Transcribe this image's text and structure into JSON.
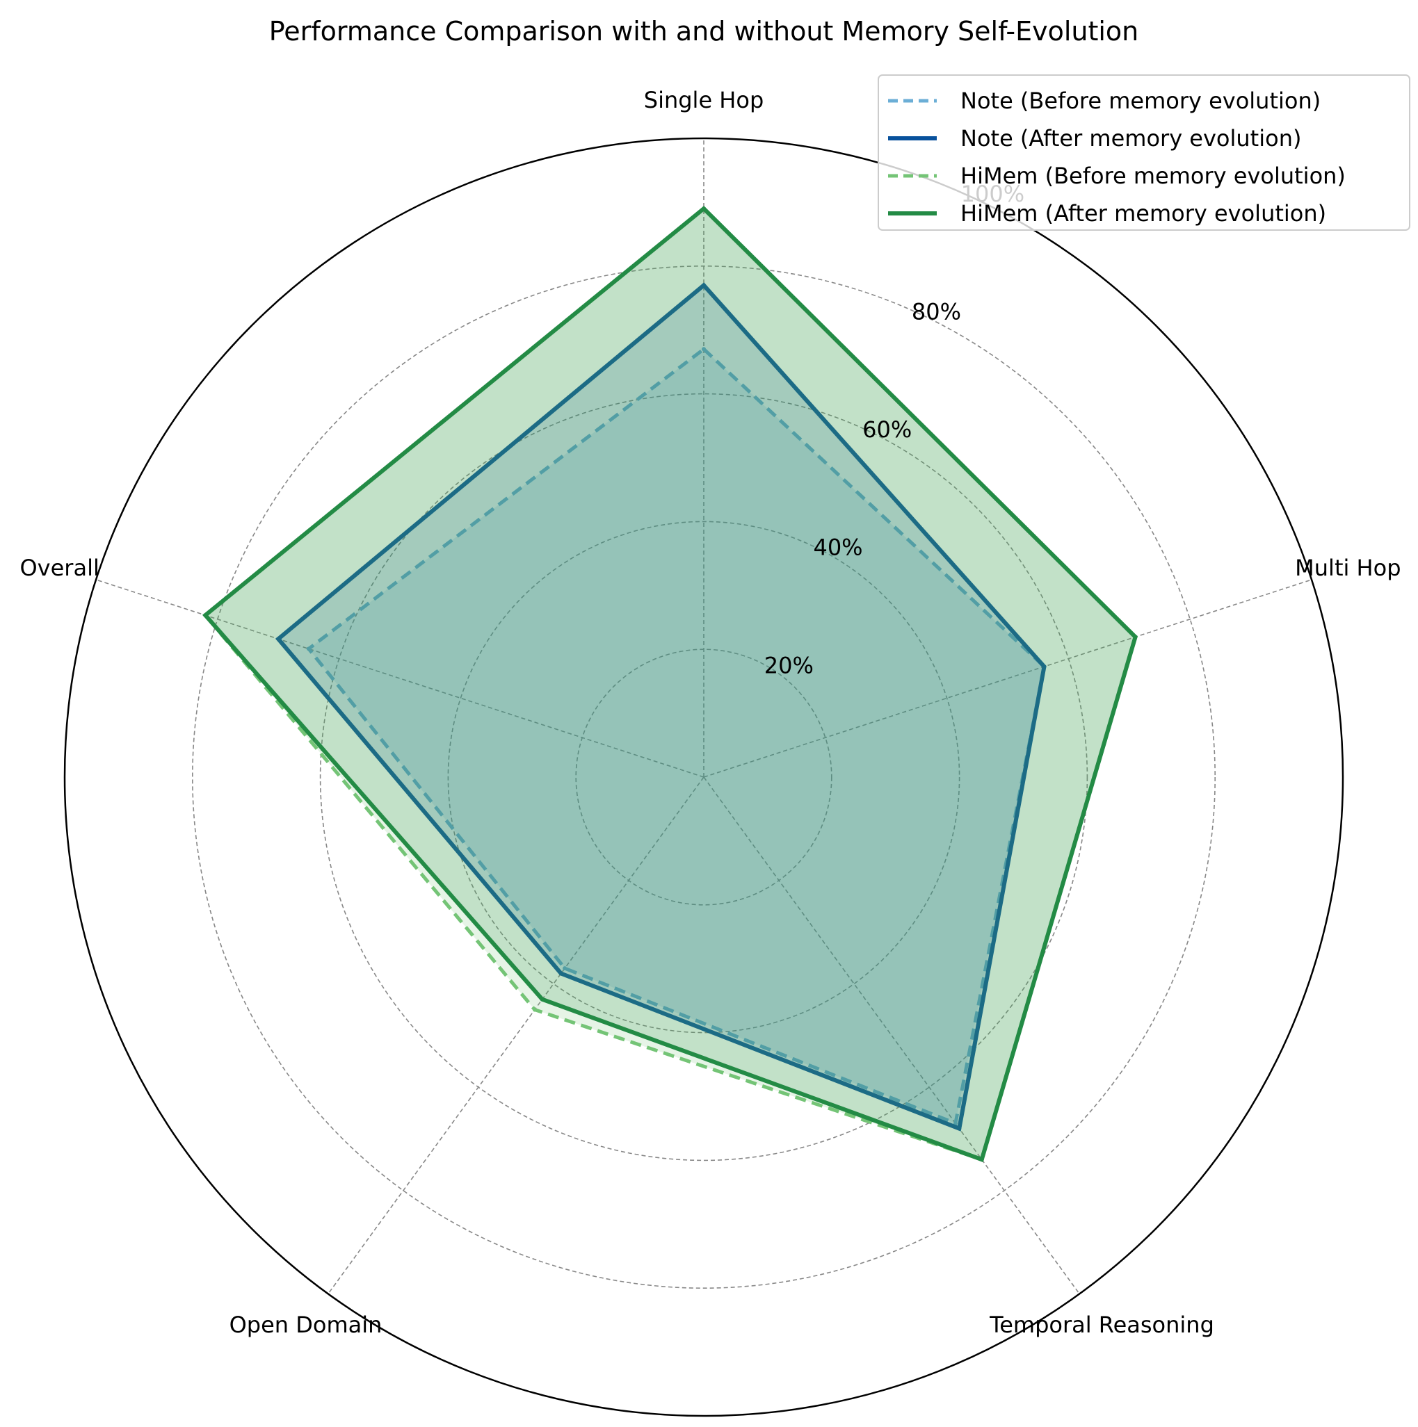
{
  "chart_data": {
    "type": "radar",
    "title": "Performance Comparison with and without Memory Self-Evolution",
    "categories": [
      "Single Hop",
      "Multi Hop",
      "Temporal Reasoning",
      "Open Domain",
      "Overall"
    ],
    "rlim": [
      0,
      100
    ],
    "r_ticks": [
      20,
      40,
      60,
      80,
      100
    ],
    "r_tick_labels": [
      "20%",
      "40%",
      "60%",
      "80%",
      "100%"
    ],
    "grid": true,
    "legend_position": "top-right",
    "series": [
      {
        "name": "Note (Before memory evolution)",
        "values": [
          67,
          56,
          67,
          37,
          65
        ],
        "color": "#6baed6",
        "style": "dashed",
        "fill": true
      },
      {
        "name": "Note (After memory evolution)",
        "values": [
          77,
          56,
          68,
          38,
          70
        ],
        "color": "#08519c",
        "style": "solid",
        "fill": true
      },
      {
        "name": "HiMem (Before memory evolution)",
        "values": [
          89,
          71,
          74,
          45,
          82
        ],
        "color": "#74c476",
        "style": "dashed",
        "fill": true
      },
      {
        "name": "HiMem (After memory evolution)",
        "values": [
          89,
          71,
          74,
          43,
          82
        ],
        "color": "#238b45",
        "style": "solid",
        "fill": true
      }
    ]
  }
}
